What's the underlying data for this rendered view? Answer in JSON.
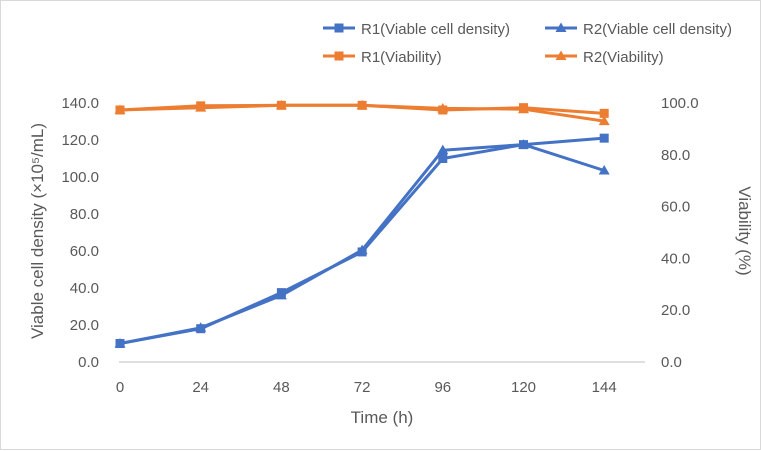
{
  "chart_data": {
    "type": "line",
    "xlabel": "Time (h)",
    "ylabel_left": "Viable cell density (×10⁵/mL)",
    "ylabel_right": "Viability (%)",
    "x": [
      0,
      24,
      48,
      72,
      96,
      120,
      144
    ],
    "x_tick_labels": [
      "0",
      "24",
      "48",
      "72",
      "96",
      "120",
      "144"
    ],
    "ylim_left": [
      0,
      140
    ],
    "y_ticks_left": [
      "0.0",
      "20.0",
      "40.0",
      "60.0",
      "80.0",
      "100.0",
      "120.0",
      "140.0"
    ],
    "ylim_right": [
      0,
      100
    ],
    "y_ticks_right": [
      "0.0",
      "20.0",
      "40.0",
      "60.0",
      "80.0",
      "100.0"
    ],
    "grid": false,
    "legend_position": "top-right",
    "series": [
      {
        "name": "R1(Viable cell density)",
        "axis": "left",
        "marker": "square",
        "color": "#4472C4",
        "values": [
          10.0,
          18.0,
          37.5,
          59.5,
          110.0,
          117.5,
          121.0
        ]
      },
      {
        "name": "R2(Viable cell density)",
        "axis": "left",
        "marker": "triangle",
        "color": "#4472C4",
        "values": [
          10.0,
          18.5,
          36.0,
          60.5,
          114.5,
          117.5,
          103.5
        ]
      },
      {
        "name": "R1(Viability)",
        "axis": "right",
        "marker": "square",
        "color": "#ED7D31",
        "values": [
          97.3,
          98.9,
          99.1,
          99.1,
          97.3,
          98.2,
          96.0
        ]
      },
      {
        "name": "R2(Viability)",
        "axis": "right",
        "marker": "triangle",
        "color": "#ED7D31",
        "values": [
          97.3,
          98.2,
          99.1,
          99.1,
          97.9,
          97.6,
          93.0
        ]
      }
    ]
  },
  "legend": {
    "r1_vcd": "R1(Viable cell density)",
    "r2_vcd": "R2(Viable cell density)",
    "r1_via": "R1(Viability)",
    "r2_via": "R2(Viability)"
  }
}
